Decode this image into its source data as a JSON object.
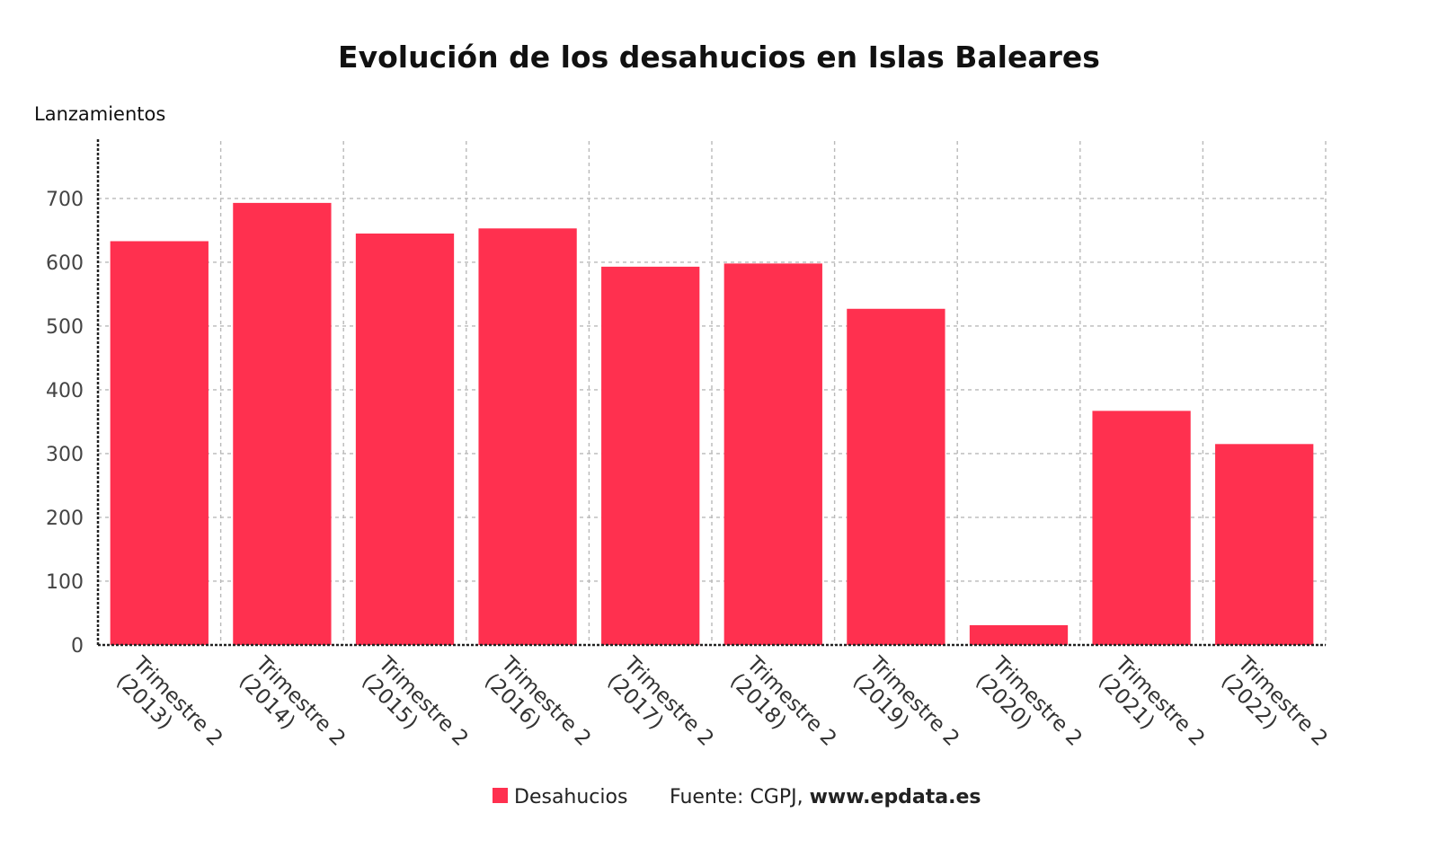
{
  "chart_data": {
    "type": "bar",
    "title": "Evolución de los desahucios en Islas Baleares",
    "ylabel": "Lanzamientos",
    "xlabel": "",
    "categories": [
      [
        "Trimestre 2",
        "(2013)"
      ],
      [
        "Trimestre 2",
        "(2014)"
      ],
      [
        "Trimestre 2",
        "(2015)"
      ],
      [
        "Trimestre 2",
        "(2016)"
      ],
      [
        "Trimestre 2",
        "(2017)"
      ],
      [
        "Trimestre 2",
        "(2018)"
      ],
      [
        "Trimestre 2",
        "(2019)"
      ],
      [
        "Trimestre 2",
        "(2020)"
      ],
      [
        "Trimestre 2",
        "(2021)"
      ],
      [
        "Trimestre 2",
        "(2022)"
      ]
    ],
    "series": [
      {
        "name": "Desahucios",
        "color": "#ff304f",
        "values": [
          633,
          693,
          645,
          653,
          593,
          598,
          527,
          31,
          367,
          315
        ]
      }
    ],
    "ylim": [
      0,
      790
    ],
    "yticks": [
      0,
      100,
      200,
      300,
      400,
      500,
      600,
      700
    ],
    "grid": true,
    "legend": "bottom-center"
  },
  "footer": {
    "source_prefix": "Fuente: CGPJ, ",
    "source_site": "www.epdata.es"
  }
}
